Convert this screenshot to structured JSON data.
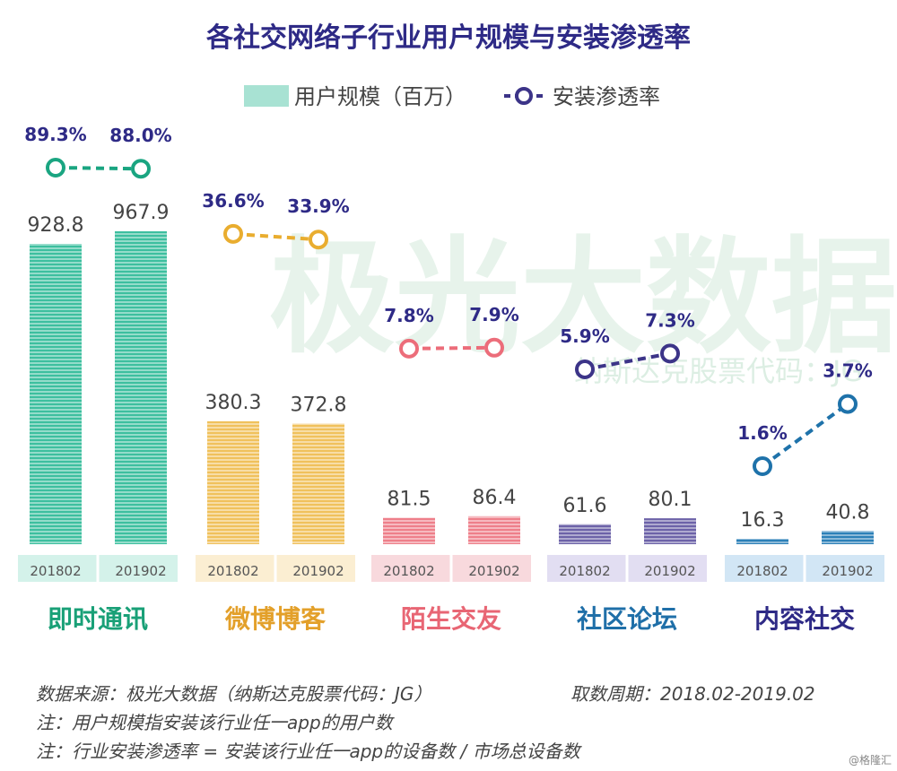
{
  "chart_data": {
    "type": "bar",
    "title": "各社交网络子行业用户规模与安装渗透率",
    "legend": {
      "bar_series": "用户规模（百万）",
      "line_series": "安装渗透率",
      "placement": "top-center"
    },
    "periods": [
      "201802",
      "201902"
    ],
    "groups": [
      {
        "category": "即时通讯",
        "color": "#3dbf9f",
        "tick_bg": "#d4f2ea",
        "scale": [
          928.8,
          967.9
        ],
        "scale_labels": [
          "928.8",
          "967.9"
        ],
        "penetration": [
          89.3,
          88.0
        ],
        "penetration_labels": [
          "89.3%",
          "88.0%"
        ]
      },
      {
        "category": "微博博客",
        "color": "#f0c15c",
        "tick_bg": "#fbeed2",
        "scale": [
          380.3,
          372.8
        ],
        "scale_labels": [
          "380.3",
          "372.8"
        ],
        "penetration": [
          36.6,
          33.9
        ],
        "penetration_labels": [
          "36.6%",
          "33.9%"
        ]
      },
      {
        "category": "陌生交友",
        "color": "#ee7f8a",
        "tick_bg": "#f8d9dd",
        "scale": [
          81.5,
          86.4
        ],
        "scale_labels": [
          "81.5",
          "86.4"
        ],
        "penetration": [
          7.8,
          7.9
        ],
        "penetration_labels": [
          "7.8%",
          "7.9%"
        ]
      },
      {
        "category": "社区论坛",
        "color": "#6c62a8",
        "tick_bg": "#e2def2",
        "scale": [
          61.6,
          80.1
        ],
        "scale_labels": [
          "61.6",
          "80.1"
        ],
        "penetration": [
          5.9,
          7.3
        ],
        "penetration_labels": [
          "5.9%",
          "7.3%"
        ]
      },
      {
        "category": "内容社交",
        "color": "#2c80b8",
        "tick_bg": "#d2e6f5",
        "scale": [
          16.3,
          40.8
        ],
        "scale_labels": [
          "16.3",
          "40.8"
        ],
        "penetration": [
          1.6,
          3.7
        ],
        "penetration_labels": [
          "1.6%",
          "3.7%"
        ]
      }
    ],
    "category_label_colors": [
      "#19a077",
      "#e3a02a",
      "#e86674",
      "#1f6fa8",
      "#2e2a86"
    ],
    "line_colors": [
      "#1aa581",
      "#e9ad2f",
      "#ec6d7a",
      "#3c3488",
      "#1e72aa"
    ],
    "line_value_color": "#2e2a86",
    "grid": false
  },
  "watermark": {
    "text": "极光大数据",
    "subtext": "纳斯达克股票代码：JG"
  },
  "footer": {
    "source": "数据来源：极光大数据（纳斯达克股票代码：JG）",
    "period": "取数周期：2018.02-2019.02",
    "note1": "注：用户规模指安装该行业任一app的用户数",
    "note2": "注：行业安装渗透率 = 安装该行业任一app的设备数 / 市场总设备数",
    "credit": "@格隆汇"
  }
}
